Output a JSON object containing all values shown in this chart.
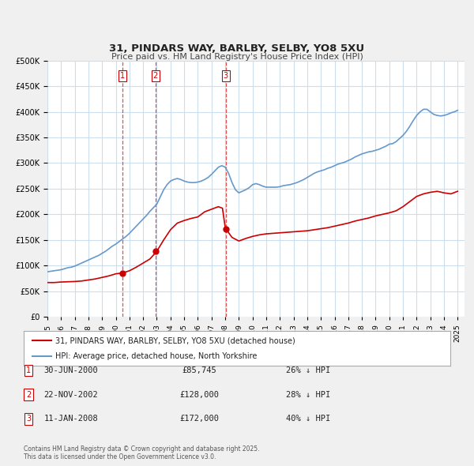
{
  "title": "31, PINDARS WAY, BARLBY, SELBY, YO8 5XU",
  "subtitle": "Price paid vs. HM Land Registry's House Price Index (HPI)",
  "legend_label_red": "31, PINDARS WAY, BARLBY, SELBY, YO8 5XU (detached house)",
  "legend_label_blue": "HPI: Average price, detached house, North Yorkshire",
  "footnote": "Contains HM Land Registry data © Crown copyright and database right 2025.\nThis data is licensed under the Open Government Licence v3.0.",
  "transactions": [
    {
      "num": 1,
      "date": "30-JUN-2000",
      "price": 85745,
      "pct": "26%",
      "x_year": 2000.5
    },
    {
      "num": 2,
      "date": "22-NOV-2002",
      "price": 128000,
      "pct": "28%",
      "x_year": 2002.9
    },
    {
      "num": 3,
      "date": "11-JAN-2008",
      "price": 172000,
      "pct": "40%",
      "x_year": 2008.04
    }
  ],
  "vline_color": "#e05050",
  "vline_style": "--",
  "red_color": "#cc0000",
  "blue_color": "#6699cc",
  "bg_color": "#f0f0f0",
  "plot_bg_color": "#ffffff",
  "grid_color": "#ccddee",
  "ylim": [
    0,
    500000
  ],
  "yticks": [
    0,
    50000,
    100000,
    150000,
    200000,
    250000,
    300000,
    350000,
    400000,
    450000,
    500000
  ],
  "xlim": [
    1995,
    2025.5
  ],
  "xticks": [
    1995,
    1996,
    1997,
    1998,
    1999,
    2000,
    2001,
    2002,
    2003,
    2004,
    2005,
    2006,
    2007,
    2008,
    2009,
    2010,
    2011,
    2012,
    2013,
    2014,
    2015,
    2016,
    2017,
    2018,
    2019,
    2020,
    2021,
    2022,
    2023,
    2024,
    2025
  ],
  "hpi_x": [
    1995,
    1995.25,
    1995.5,
    1995.75,
    1996,
    1996.25,
    1996.5,
    1996.75,
    1997,
    1997.25,
    1997.5,
    1997.75,
    1998,
    1998.25,
    1998.5,
    1998.75,
    1999,
    1999.25,
    1999.5,
    1999.75,
    2000,
    2000.25,
    2000.5,
    2000.75,
    2001,
    2001.25,
    2001.5,
    2001.75,
    2002,
    2002.25,
    2002.5,
    2002.75,
    2003,
    2003.25,
    2003.5,
    2003.75,
    2004,
    2004.25,
    2004.5,
    2004.75,
    2005,
    2005.25,
    2005.5,
    2005.75,
    2006,
    2006.25,
    2006.5,
    2006.75,
    2007,
    2007.25,
    2007.5,
    2007.75,
    2008,
    2008.25,
    2008.5,
    2008.75,
    2009,
    2009.25,
    2009.5,
    2009.75,
    2010,
    2010.25,
    2010.5,
    2010.75,
    2011,
    2011.25,
    2011.5,
    2011.75,
    2012,
    2012.25,
    2012.5,
    2012.75,
    2013,
    2013.25,
    2013.5,
    2013.75,
    2014,
    2014.25,
    2014.5,
    2014.75,
    2015,
    2015.25,
    2015.5,
    2015.75,
    2016,
    2016.25,
    2016.5,
    2016.75,
    2017,
    2017.25,
    2017.5,
    2017.75,
    2018,
    2018.25,
    2018.5,
    2018.75,
    2019,
    2019.25,
    2019.5,
    2019.75,
    2020,
    2020.25,
    2020.5,
    2020.75,
    2021,
    2021.25,
    2021.5,
    2021.75,
    2022,
    2022.25,
    2022.5,
    2022.75,
    2023,
    2023.25,
    2023.5,
    2023.75,
    2024,
    2024.25,
    2024.5,
    2024.75,
    2025
  ],
  "hpi_y": [
    88000,
    89000,
    90000,
    91000,
    92000,
    94000,
    96000,
    97000,
    99000,
    102000,
    105000,
    108000,
    111000,
    114000,
    117000,
    120000,
    124000,
    128000,
    133000,
    138000,
    142000,
    147000,
    152000,
    157000,
    163000,
    170000,
    177000,
    184000,
    191000,
    198000,
    206000,
    213000,
    220000,
    234000,
    248000,
    258000,
    265000,
    268000,
    270000,
    268000,
    265000,
    263000,
    262000,
    262000,
    263000,
    265000,
    268000,
    272000,
    278000,
    285000,
    292000,
    295000,
    292000,
    280000,
    262000,
    248000,
    242000,
    245000,
    248000,
    252000,
    258000,
    260000,
    258000,
    255000,
    253000,
    253000,
    253000,
    253000,
    254000,
    256000,
    257000,
    258000,
    260000,
    262000,
    265000,
    268000,
    272000,
    276000,
    280000,
    283000,
    285000,
    287000,
    290000,
    292000,
    295000,
    298000,
    300000,
    302000,
    305000,
    308000,
    312000,
    315000,
    318000,
    320000,
    322000,
    323000,
    325000,
    327000,
    330000,
    333000,
    337000,
    338000,
    342000,
    348000,
    354000,
    362000,
    372000,
    383000,
    393000,
    400000,
    405000,
    405000,
    400000,
    395000,
    393000,
    392000,
    393000,
    395000,
    398000,
    400000,
    403000
  ],
  "red_x": [
    1995,
    1995.5,
    1996,
    1996.5,
    1997,
    1997.5,
    1998,
    1998.5,
    1999,
    1999.5,
    2000,
    2000.5,
    2001,
    2001.5,
    2002,
    2002.5,
    2003,
    2003.5,
    2004,
    2004.5,
    2005,
    2005.5,
    2006,
    2006.5,
    2007,
    2007.3,
    2007.5,
    2007.8,
    2008,
    2008.04,
    2008.5,
    2009,
    2009.5,
    2010,
    2010.5,
    2011,
    2011.5,
    2012,
    2012.5,
    2013,
    2013.5,
    2014,
    2014.5,
    2015,
    2015.5,
    2016,
    2016.5,
    2017,
    2017.5,
    2018,
    2018.5,
    2019,
    2019.5,
    2020,
    2020.5,
    2021,
    2021.5,
    2022,
    2022.5,
    2023,
    2023.5,
    2024,
    2024.5,
    2025
  ],
  "red_y": [
    67000,
    67000,
    68000,
    68500,
    69000,
    70000,
    72000,
    74000,
    77000,
    80000,
    84000,
    85745,
    90000,
    97000,
    105000,
    113000,
    128000,
    150000,
    170000,
    183000,
    188000,
    192000,
    195000,
    205000,
    210000,
    213000,
    215000,
    212000,
    175000,
    172000,
    155000,
    148000,
    153000,
    157000,
    160000,
    162000,
    163000,
    164000,
    165000,
    166000,
    167000,
    168000,
    170000,
    172000,
    174000,
    177000,
    180000,
    183000,
    187000,
    190000,
    193000,
    197000,
    200000,
    203000,
    207000,
    215000,
    225000,
    235000,
    240000,
    243000,
    245000,
    242000,
    240000,
    245000
  ]
}
